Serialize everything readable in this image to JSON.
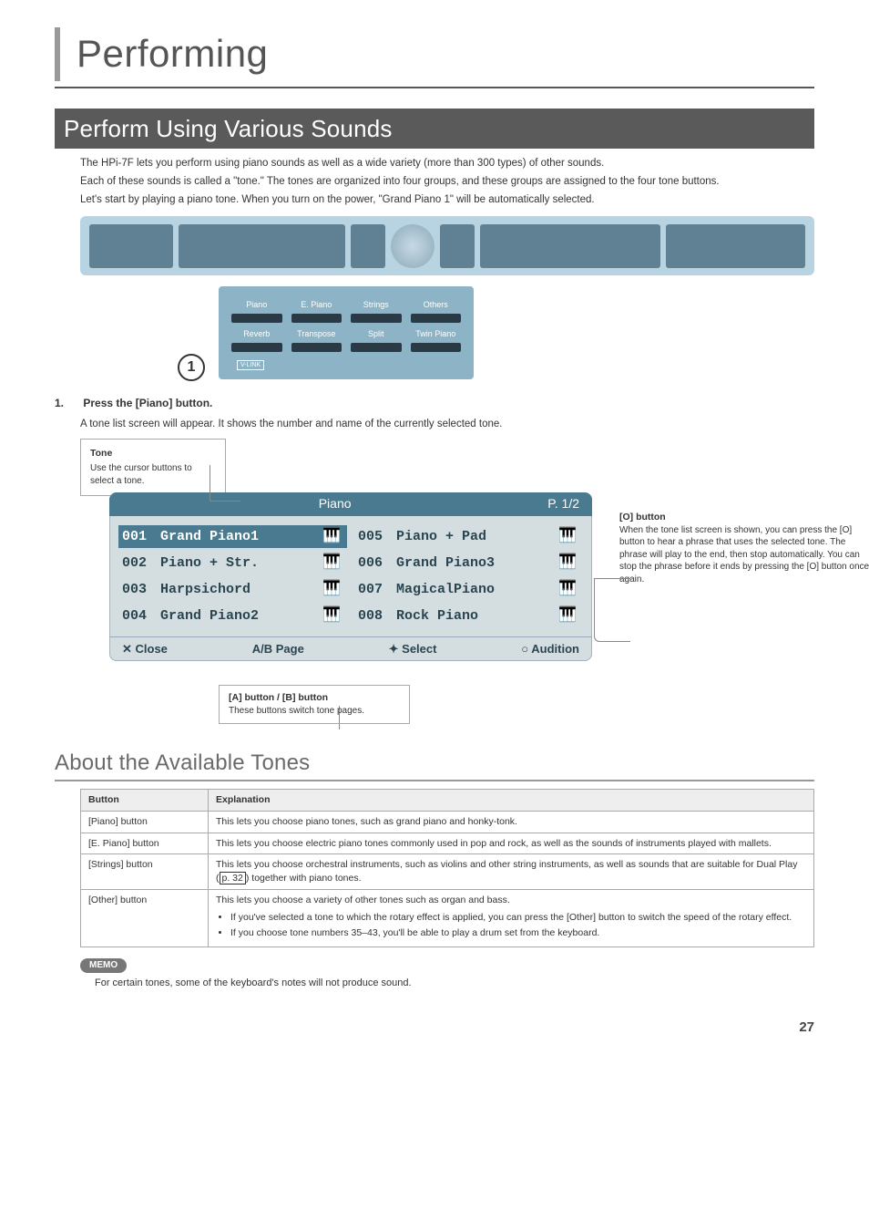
{
  "page_title": "Performing",
  "page_number": "27",
  "section1": {
    "heading": "Perform Using Various Sounds",
    "intro": [
      "The HPi-7F lets you perform using piano sounds as well as a wide variety (more than 300 types) of other sounds.",
      "Each of these sounds is called a \"tone.\"  The tones are organized into four groups, and these groups are assigned to the four tone buttons.",
      "Let's start by playing a piano tone. When you turn on the power, \"Grand Piano 1\" will be automatically selected."
    ],
    "button_rows": {
      "top": [
        "Piano",
        "E. Piano",
        "Strings",
        "Others"
      ],
      "bottom": [
        "Reverb",
        "Transpose",
        "Split",
        "Twin Piano"
      ],
      "link": "V-LINK"
    },
    "step_marker": "1",
    "step": {
      "num": "1.",
      "title": "Press the [Piano] button.",
      "desc": "A tone list screen will appear. It shows the number and name of the currently selected tone."
    },
    "tone_box": {
      "title": "Tone",
      "text": "Use the cursor buttons to select a tone."
    },
    "lcd": {
      "title": "Piano",
      "page_ind": "P. 1/2",
      "items": [
        {
          "n": "001",
          "name": "Grand Piano1",
          "sel": true
        },
        {
          "n": "005",
          "name": "Piano + Pad"
        },
        {
          "n": "002",
          "name": "Piano + Str."
        },
        {
          "n": "006",
          "name": "Grand Piano3"
        },
        {
          "n": "003",
          "name": "Harpsichord"
        },
        {
          "n": "007",
          "name": "MagicalPiano"
        },
        {
          "n": "004",
          "name": "Grand Piano2"
        },
        {
          "n": "008",
          "name": "Rock Piano"
        }
      ],
      "footer": [
        "✕ Close",
        "A/B Page",
        "✦ Select",
        "○ Audition"
      ]
    },
    "o_callout": {
      "title": "[O] button",
      "text": "When the tone list screen is shown, you can press the [O] button to hear a phrase that uses the selected tone. The phrase will play to the end, then stop automatically. You can stop the phrase before it ends by pressing the [O] button once again."
    },
    "ab_callout": {
      "title": "[A] button / [B] button",
      "text": "These buttons switch tone pages."
    }
  },
  "section2": {
    "heading": "About the Available Tones",
    "table": {
      "headers": [
        "Button",
        "Explanation"
      ],
      "rows": [
        {
          "btn": "[Piano] button",
          "exp": "This lets you choose piano tones, such as grand piano and honky-tonk."
        },
        {
          "btn": "[E. Piano] button",
          "exp": "This lets you choose electric piano tones commonly used in pop and rock, as well as the sounds of instruments played with mallets."
        },
        {
          "btn": "[Strings] button",
          "exp_pre": "This lets you choose orchestral instruments, such as violins and other string instruments, as well as sounds that are suitable for Dual Play (",
          "ref": "p. 32",
          "exp_post": ") together with piano tones."
        },
        {
          "btn": "[Other] button",
          "exp_main": "This lets you choose a variety of other tones such as organ and bass.",
          "bullets": [
            "If you've selected a tone to which the rotary effect is applied, you can press the [Other] button to switch the speed of the rotary effect.",
            "If you choose tone numbers 35–43, you'll be able to play a drum set from the keyboard."
          ]
        }
      ]
    },
    "memo_label": "MEMO",
    "memo_text": "For certain tones, some of the keyboard's notes will not produce sound."
  }
}
